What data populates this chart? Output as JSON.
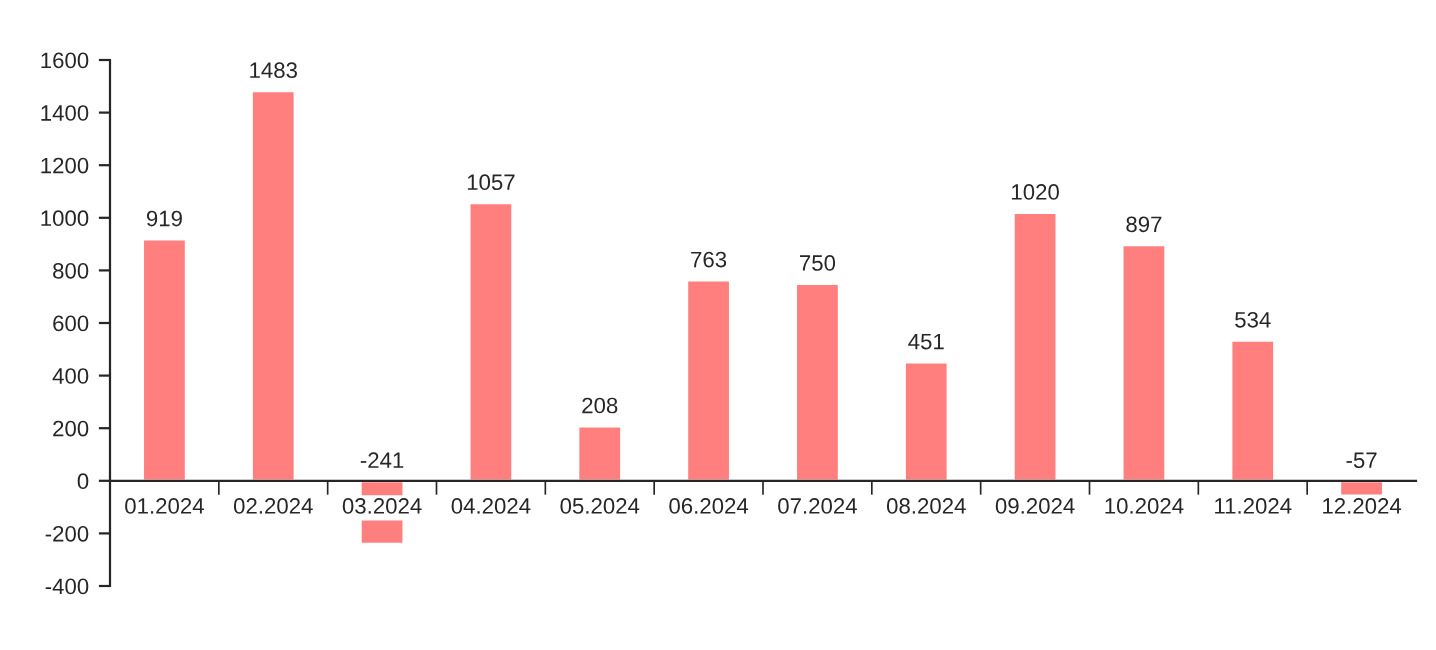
{
  "chart_data": {
    "type": "bar",
    "categories": [
      "01.2024",
      "02.2024",
      "03.2024",
      "04.2024",
      "05.2024",
      "06.2024",
      "07.2024",
      "08.2024",
      "09.2024",
      "10.2024",
      "11.2024",
      "12.2024"
    ],
    "values": [
      919,
      1483,
      -241,
      1057,
      208,
      763,
      750,
      451,
      1020,
      897,
      534,
      -57
    ],
    "color": "#ff7f7f",
    "ylim": [
      -400,
      1600
    ],
    "yticks": [
      -400,
      -200,
      0,
      200,
      400,
      600,
      800,
      1000,
      1200,
      1400,
      1600
    ],
    "grid": false,
    "legend": false,
    "data_labels": true
  }
}
